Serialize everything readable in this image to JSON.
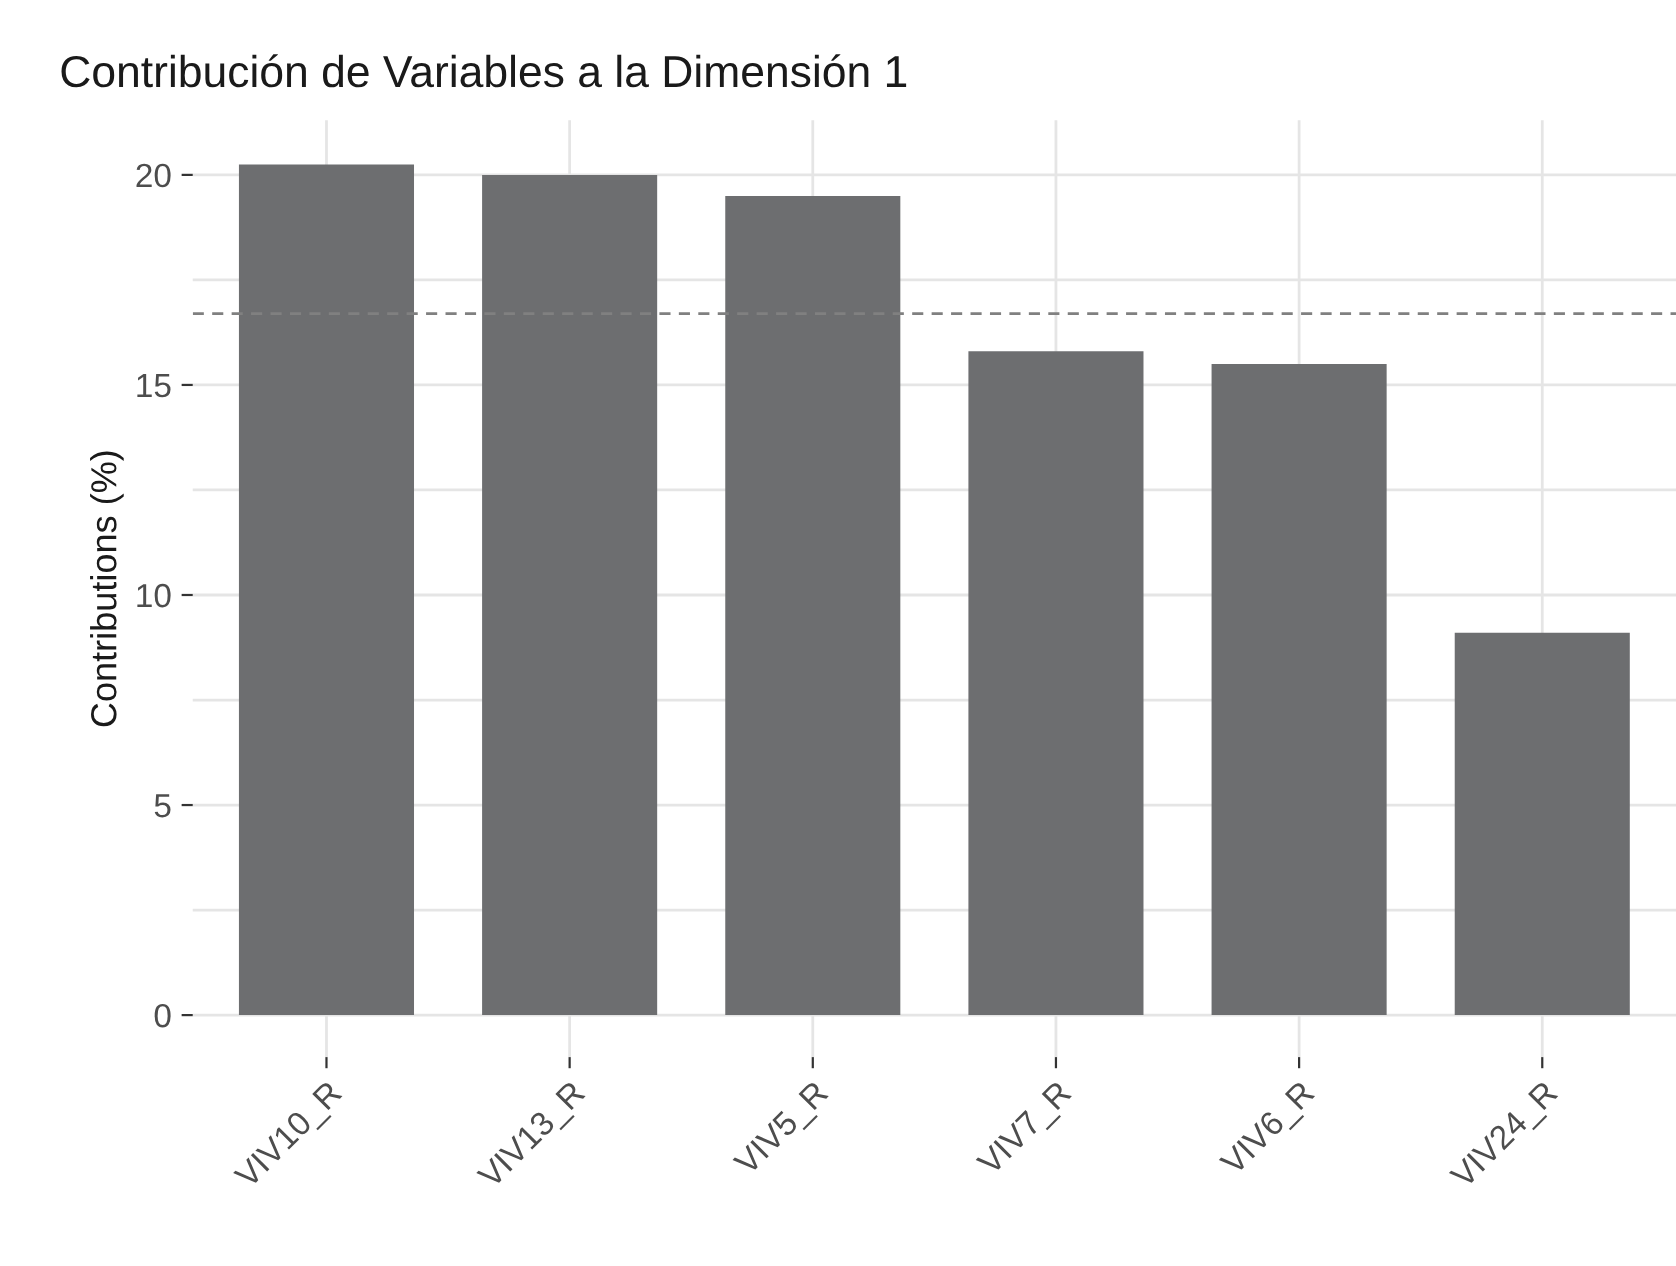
{
  "chart_data": {
    "type": "bar",
    "title": "Contribución de Variables a la Dimensión 1",
    "ylabel": "Contributions (%)",
    "categories": [
      "VIV10_R",
      "VIV13_R",
      "VIV5_R",
      "VIV7_R",
      "VIV6_R",
      "VIV24_R"
    ],
    "values": [
      20.25,
      20.0,
      19.5,
      15.8,
      15.5,
      9.1
    ],
    "color": "#6d6e70",
    "ylim": [
      -1.0,
      21.3
    ],
    "yticks": [
      0,
      {
        "value": 2.5,
        "label": null
      },
      5,
      {
        "value": 7.5,
        "label": null
      },
      10,
      {
        "value": 12.5,
        "label": null
      },
      15,
      {
        "value": 17.5,
        "label": null
      },
      20
    ],
    "ref_lines": [
      {
        "axis": "y",
        "value": 16.7,
        "color": "#808080",
        "line_style": "dashed"
      }
    ],
    "grid": true
  }
}
